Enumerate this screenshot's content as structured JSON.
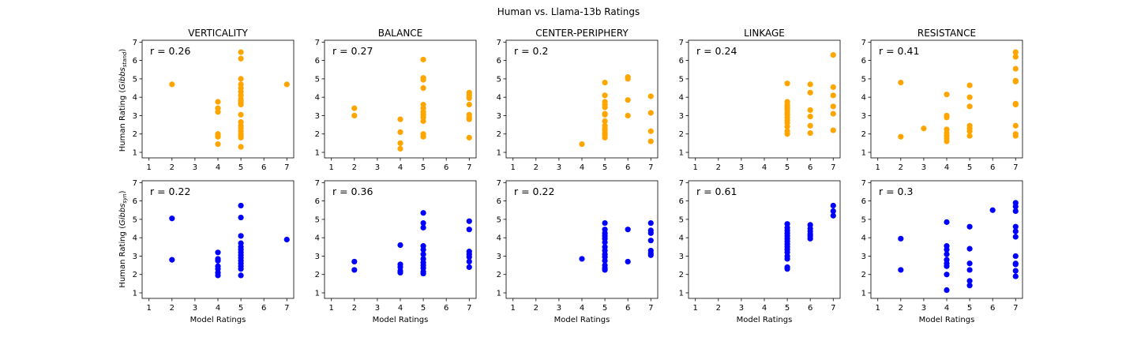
{
  "figure": {
    "title": "Human vs. Llama-13b Ratings"
  },
  "colors": {
    "top": "#FFA500",
    "bottom": "#0000FF"
  },
  "labels": {
    "xlabel": "Model Ratings",
    "ylabel_top_main": "Human Rating (",
    "ylabel_top_var": "Gibbs",
    "ylabel_top_sub": "stand",
    "ylabel_top_end": ")",
    "ylabel_bottom_main": "Human Rating (",
    "ylabel_bottom_var": "Gibbs",
    "ylabel_bottom_sub": "syn",
    "ylabel_bottom_end": ")"
  },
  "axes": {
    "xlim": [
      0.7,
      7.3
    ],
    "ylim": [
      0.7,
      7.1
    ],
    "xticks": [
      1,
      2,
      3,
      4,
      5,
      6,
      7
    ],
    "yticks": [
      1,
      2,
      3,
      4,
      5,
      6,
      7
    ]
  },
  "chart_data": [
    {
      "type": "scatter",
      "title": "VERTICALITY",
      "row": "top",
      "annotation": "r = 0.26",
      "points": [
        [
          2,
          4.7
        ],
        [
          4,
          3.75
        ],
        [
          4,
          3.4
        ],
        [
          4,
          3.2
        ],
        [
          4,
          2.0
        ],
        [
          4,
          1.9
        ],
        [
          4,
          1.85
        ],
        [
          4,
          1.45
        ],
        [
          5,
          6.45
        ],
        [
          5,
          6.1
        ],
        [
          5,
          5.0
        ],
        [
          5,
          4.7
        ],
        [
          5,
          4.5
        ],
        [
          5,
          4.3
        ],
        [
          5,
          4.1
        ],
        [
          5,
          3.9
        ],
        [
          5,
          3.8
        ],
        [
          5,
          3.7
        ],
        [
          5,
          3.6
        ],
        [
          5,
          3.05
        ],
        [
          5,
          2.65
        ],
        [
          5,
          2.45
        ],
        [
          5,
          2.3
        ],
        [
          5,
          2.15
        ],
        [
          5,
          2.0
        ],
        [
          5,
          1.9
        ],
        [
          5,
          1.8
        ],
        [
          5,
          1.3
        ],
        [
          7,
          4.7
        ]
      ]
    },
    {
      "type": "scatter",
      "title": "BALANCE",
      "row": "top",
      "annotation": "r = 0.27",
      "points": [
        [
          2,
          3.4
        ],
        [
          2,
          3.0
        ],
        [
          4,
          2.8
        ],
        [
          4,
          2.1
        ],
        [
          4,
          1.5
        ],
        [
          4,
          1.2
        ],
        [
          5,
          6.05
        ],
        [
          5,
          5.05
        ],
        [
          5,
          4.95
        ],
        [
          5,
          4.5
        ],
        [
          5,
          3.6
        ],
        [
          5,
          3.4
        ],
        [
          5,
          3.2
        ],
        [
          5,
          3.05
        ],
        [
          5,
          2.9
        ],
        [
          5,
          2.7
        ],
        [
          5,
          2.0
        ],
        [
          5,
          1.85
        ],
        [
          7,
          4.25
        ],
        [
          7,
          4.1
        ],
        [
          7,
          3.95
        ],
        [
          7,
          3.6
        ],
        [
          7,
          3.05
        ],
        [
          7,
          2.9
        ],
        [
          7,
          2.8
        ],
        [
          7,
          1.8
        ]
      ]
    },
    {
      "type": "scatter",
      "title": "CENTER-PERIPHERY",
      "row": "top",
      "annotation": "r = 0.2",
      "points": [
        [
          4,
          1.45
        ],
        [
          5,
          4.8
        ],
        [
          5,
          4.1
        ],
        [
          5,
          3.75
        ],
        [
          5,
          3.6
        ],
        [
          5,
          3.45
        ],
        [
          5,
          3.1
        ],
        [
          5,
          3.05
        ],
        [
          5,
          2.7
        ],
        [
          5,
          2.45
        ],
        [
          5,
          2.3
        ],
        [
          5,
          2.2
        ],
        [
          5,
          2.05
        ],
        [
          5,
          1.95
        ],
        [
          5,
          1.8
        ],
        [
          6,
          5.1
        ],
        [
          6,
          5.0
        ],
        [
          6,
          3.85
        ],
        [
          6,
          3.0
        ],
        [
          7,
          4.05
        ],
        [
          7,
          3.15
        ],
        [
          7,
          2.15
        ],
        [
          7,
          1.6
        ]
      ]
    },
    {
      "type": "scatter",
      "title": "LINKAGE",
      "row": "top",
      "annotation": "r = 0.24",
      "points": [
        [
          5,
          4.75
        ],
        [
          5,
          3.75
        ],
        [
          5,
          3.6
        ],
        [
          5,
          3.5
        ],
        [
          5,
          3.4
        ],
        [
          5,
          3.3
        ],
        [
          5,
          3.15
        ],
        [
          5,
          3.05
        ],
        [
          5,
          2.9
        ],
        [
          5,
          2.75
        ],
        [
          5,
          2.6
        ],
        [
          5,
          2.4
        ],
        [
          5,
          2.15
        ],
        [
          5,
          2.0
        ],
        [
          6,
          4.7
        ],
        [
          6,
          4.25
        ],
        [
          6,
          3.3
        ],
        [
          6,
          2.95
        ],
        [
          6,
          2.45
        ],
        [
          6,
          2.05
        ],
        [
          7,
          6.3
        ],
        [
          7,
          4.55
        ],
        [
          7,
          4.1
        ],
        [
          7,
          3.5
        ],
        [
          7,
          3.1
        ],
        [
          7,
          2.2
        ]
      ]
    },
    {
      "type": "scatter",
      "title": "RESISTANCE",
      "row": "top",
      "annotation": "r = 0.41",
      "points": [
        [
          2,
          4.8
        ],
        [
          2,
          1.85
        ],
        [
          3,
          2.3
        ],
        [
          4,
          4.15
        ],
        [
          4,
          3.0
        ],
        [
          4,
          2.9
        ],
        [
          4,
          2.25
        ],
        [
          4,
          2.05
        ],
        [
          4,
          1.9
        ],
        [
          4,
          1.75
        ],
        [
          4,
          1.6
        ],
        [
          5,
          4.65
        ],
        [
          5,
          4.0
        ],
        [
          5,
          3.5
        ],
        [
          5,
          2.45
        ],
        [
          5,
          2.3
        ],
        [
          5,
          2.15
        ],
        [
          5,
          1.9
        ],
        [
          7,
          6.45
        ],
        [
          7,
          6.2
        ],
        [
          7,
          5.55
        ],
        [
          7,
          4.9
        ],
        [
          7,
          4.85
        ],
        [
          7,
          3.65
        ],
        [
          7,
          3.6
        ],
        [
          7,
          2.45
        ],
        [
          7,
          2.0
        ],
        [
          7,
          1.9
        ]
      ]
    },
    {
      "type": "scatter",
      "title": "",
      "row": "bottom",
      "annotation": "r = 0.22",
      "points": [
        [
          2,
          5.05
        ],
        [
          2,
          2.8
        ],
        [
          4,
          3.2
        ],
        [
          4,
          2.85
        ],
        [
          4,
          2.75
        ],
        [
          4,
          2.45
        ],
        [
          4,
          2.3
        ],
        [
          4,
          2.1
        ],
        [
          4,
          1.95
        ],
        [
          5,
          5.75
        ],
        [
          5,
          5.1
        ],
        [
          5,
          4.1
        ],
        [
          5,
          3.7
        ],
        [
          5,
          3.5
        ],
        [
          5,
          3.35
        ],
        [
          5,
          3.2
        ],
        [
          5,
          3.05
        ],
        [
          5,
          2.9
        ],
        [
          5,
          2.75
        ],
        [
          5,
          2.6
        ],
        [
          5,
          2.45
        ],
        [
          5,
          2.3
        ],
        [
          5,
          1.95
        ],
        [
          7,
          3.9
        ]
      ]
    },
    {
      "type": "scatter",
      "title": "",
      "row": "bottom",
      "annotation": "r = 0.36",
      "points": [
        [
          2,
          2.7
        ],
        [
          2,
          2.25
        ],
        [
          4,
          3.6
        ],
        [
          4,
          2.55
        ],
        [
          4,
          2.4
        ],
        [
          4,
          2.2
        ],
        [
          4,
          2.1
        ],
        [
          5,
          5.35
        ],
        [
          5,
          4.8
        ],
        [
          5,
          4.55
        ],
        [
          5,
          3.55
        ],
        [
          5,
          3.35
        ],
        [
          5,
          3.1
        ],
        [
          5,
          2.85
        ],
        [
          5,
          2.65
        ],
        [
          5,
          2.5
        ],
        [
          5,
          2.35
        ],
        [
          5,
          2.15
        ],
        [
          5,
          2.05
        ],
        [
          7,
          4.9
        ],
        [
          7,
          4.45
        ],
        [
          7,
          3.25
        ],
        [
          7,
          3.1
        ],
        [
          7,
          2.95
        ],
        [
          7,
          2.7
        ],
        [
          7,
          2.4
        ]
      ]
    },
    {
      "type": "scatter",
      "title": "",
      "row": "bottom",
      "annotation": "r = 0.22",
      "points": [
        [
          4,
          2.85
        ],
        [
          5,
          4.8
        ],
        [
          5,
          4.45
        ],
        [
          5,
          4.25
        ],
        [
          5,
          4.1
        ],
        [
          5,
          3.95
        ],
        [
          5,
          3.75
        ],
        [
          5,
          3.5
        ],
        [
          5,
          3.3
        ],
        [
          5,
          3.1
        ],
        [
          5,
          2.95
        ],
        [
          5,
          2.75
        ],
        [
          5,
          2.5
        ],
        [
          5,
          2.35
        ],
        [
          5,
          2.25
        ],
        [
          6,
          4.45
        ],
        [
          6,
          2.7
        ],
        [
          7,
          4.8
        ],
        [
          7,
          4.4
        ],
        [
          7,
          4.25
        ],
        [
          7,
          3.85
        ],
        [
          7,
          3.3
        ],
        [
          7,
          3.15
        ],
        [
          7,
          3.05
        ]
      ]
    },
    {
      "type": "scatter",
      "title": "",
      "row": "bottom",
      "annotation": "r = 0.61",
      "points": [
        [
          5,
          4.75
        ],
        [
          5,
          4.55
        ],
        [
          5,
          4.4
        ],
        [
          5,
          4.25
        ],
        [
          5,
          4.1
        ],
        [
          5,
          3.95
        ],
        [
          5,
          3.8
        ],
        [
          5,
          3.65
        ],
        [
          5,
          3.5
        ],
        [
          5,
          3.35
        ],
        [
          5,
          3.2
        ],
        [
          5,
          3.0
        ],
        [
          5,
          2.85
        ],
        [
          5,
          2.4
        ],
        [
          5,
          2.3
        ],
        [
          6,
          4.7
        ],
        [
          6,
          4.5
        ],
        [
          6,
          4.35
        ],
        [
          6,
          4.2
        ],
        [
          6,
          4.1
        ],
        [
          6,
          3.95
        ],
        [
          7,
          5.75
        ],
        [
          7,
          5.45
        ],
        [
          7,
          5.2
        ]
      ]
    },
    {
      "type": "scatter",
      "title": "",
      "row": "bottom",
      "annotation": "r = 0.3",
      "points": [
        [
          2,
          3.95
        ],
        [
          2,
          2.25
        ],
        [
          4,
          4.85
        ],
        [
          4,
          3.55
        ],
        [
          4,
          3.35
        ],
        [
          4,
          3.1
        ],
        [
          4,
          2.8
        ],
        [
          4,
          2.6
        ],
        [
          4,
          2.45
        ],
        [
          4,
          2.0
        ],
        [
          4,
          1.15
        ],
        [
          5,
          4.6
        ],
        [
          5,
          3.4
        ],
        [
          5,
          2.6
        ],
        [
          5,
          2.25
        ],
        [
          5,
          1.65
        ],
        [
          5,
          1.4
        ],
        [
          6,
          5.5
        ],
        [
          7,
          5.9
        ],
        [
          7,
          5.7
        ],
        [
          7,
          5.45
        ],
        [
          7,
          4.6
        ],
        [
          7,
          4.35
        ],
        [
          7,
          4.05
        ],
        [
          7,
          3.0
        ],
        [
          7,
          2.6
        ],
        [
          7,
          2.55
        ],
        [
          7,
          2.2
        ],
        [
          7,
          1.9
        ]
      ]
    }
  ]
}
